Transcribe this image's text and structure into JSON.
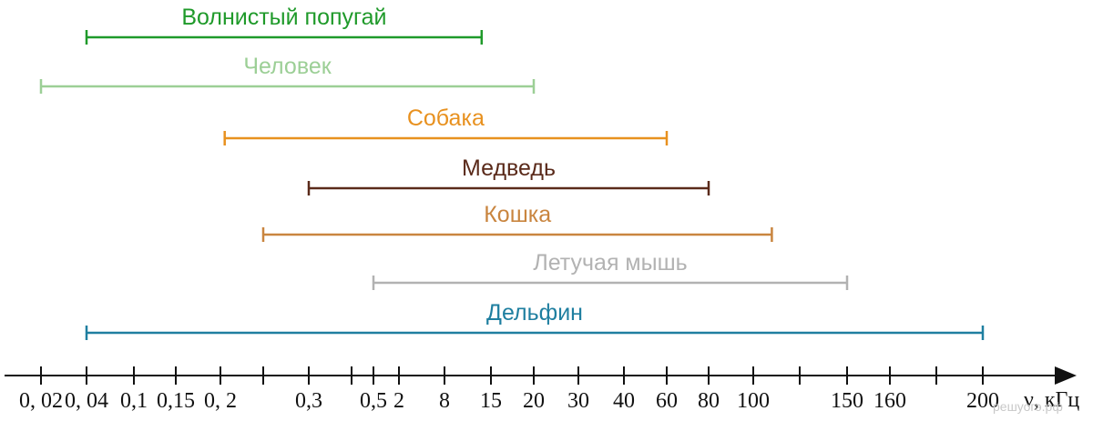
{
  "chart_data": {
    "type": "range",
    "xlabel": "ν, кГц",
    "ticks": [
      {
        "value": "0,02",
        "label": "0, 02"
      },
      {
        "value": "0,04",
        "label": "0, 04"
      },
      {
        "value": "0,1",
        "label": "0,1"
      },
      {
        "value": "0,15",
        "label": "0,15"
      },
      {
        "value": "0,2",
        "label": "0, 2"
      },
      {
        "value": "",
        "label": ""
      },
      {
        "value": "0,3",
        "label": "0,3"
      },
      {
        "value": "",
        "label": ""
      },
      {
        "value": "0,5",
        "label": "0,5"
      },
      {
        "value": "2",
        "label": "2"
      },
      {
        "value": "8",
        "label": "8"
      },
      {
        "value": "15",
        "label": "15"
      },
      {
        "value": "20",
        "label": "20"
      },
      {
        "value": "30",
        "label": "30"
      },
      {
        "value": "40",
        "label": "40"
      },
      {
        "value": "60",
        "label": "60"
      },
      {
        "value": "80",
        "label": "80"
      },
      {
        "value": "100",
        "label": "100"
      },
      {
        "value": "",
        "label": ""
      },
      {
        "value": "150",
        "label": "150"
      },
      {
        "value": "160",
        "label": "160"
      },
      {
        "value": "",
        "label": ""
      },
      {
        "value": "200",
        "label": "200"
      }
    ],
    "series": [
      {
        "name": "Волнистый попугай",
        "color": "#1f9a2a",
        "start_tick": 1.0,
        "end_tick": 10.8
      },
      {
        "name": "Человек",
        "color": "#9ccf96",
        "start_tick": 0.0,
        "end_tick": 12.0
      },
      {
        "name": "Собака",
        "color": "#e8911f",
        "start_tick": 4.1,
        "end_tick": 15.0
      },
      {
        "name": "Медведь",
        "color": "#5a2a1a",
        "start_tick": 6.0,
        "end_tick": 16.0
      },
      {
        "name": "Кошка",
        "color": "#c9853f",
        "start_tick": 5.0,
        "end_tick": 17.4
      },
      {
        "name": "Летучая мышь",
        "color": "#b2b2b2",
        "start_tick": 8.0,
        "end_tick": 19.0
      },
      {
        "name": "Дельфин",
        "color": "#1f7fa0",
        "start_tick": 1.0,
        "end_tick": 22.0
      }
    ]
  },
  "watermark": "решуогэ.рф"
}
